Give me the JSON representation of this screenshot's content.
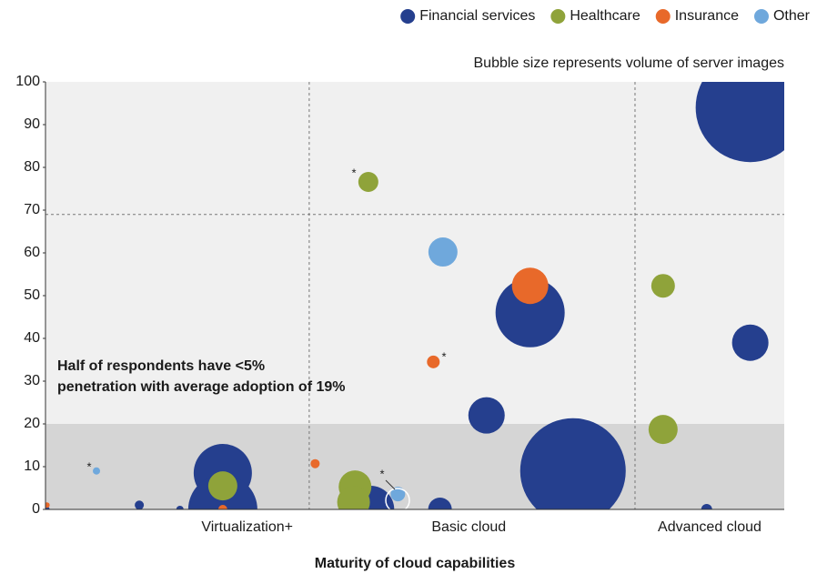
{
  "chart_data": {
    "type": "bubble",
    "subtitle": "Bubble size represents volume of server images",
    "x_label": "Maturity of cloud capabilities",
    "annotation": [
      "Half of respondents have <5%",
      "penetration with average adoption of 19%"
    ],
    "asterisks": [
      "*",
      "*",
      "*",
      "*"
    ],
    "xlim": [
      0,
      100
    ],
    "ylim": [
      0,
      100
    ],
    "xticks": [
      {
        "value": 27.3,
        "label": "Virtualization+"
      },
      {
        "value": 57.3,
        "label": "Basic cloud"
      },
      {
        "value": 89.9,
        "label": "Advanced cloud"
      }
    ],
    "yticks": [
      0,
      10,
      20,
      30,
      40,
      50,
      60,
      70,
      80,
      90,
      100
    ],
    "x_dividers": [
      35.7,
      79.8
    ],
    "y_divider": 69,
    "shaded_below": 20,
    "legend": "top-right",
    "series": [
      {
        "name": "Financial services",
        "color": "#253f8e",
        "x": [
          95.4,
          65.6,
          71.4,
          95.4,
          59.7,
          24,
          24,
          44,
          53.4,
          12.7,
          18.2,
          89.5,
          0.2
        ],
        "values": [
          94,
          46,
          9,
          39,
          22,
          8.5,
          0,
          0,
          0,
          1,
          0,
          0,
          0
        ],
        "sizes": [
          60,
          38,
          58,
          20,
          20,
          32,
          38,
          26,
          13,
          5,
          4,
          6,
          3
        ]
      },
      {
        "name": "Healthcare",
        "color": "#8fa33a",
        "x": [
          43.7,
          83.6,
          83.6,
          24,
          41.9,
          41.7
        ],
        "values": [
          76.6,
          52.3,
          18.7,
          5.5,
          5.3,
          1.7
        ],
        "sizes": [
          11,
          13,
          16,
          16,
          18,
          18
        ]
      },
      {
        "name": "Insurance",
        "color": "#e8692a",
        "x": [
          65.6,
          52.5,
          36.5,
          24,
          0.2
        ],
        "values": [
          52.3,
          34.5,
          10.7,
          0,
          1
        ],
        "sizes": [
          20,
          7,
          5,
          5,
          3
        ]
      },
      {
        "name": "Other",
        "color": "#6fa8dc",
        "x": [
          53.8,
          6.9,
          47.7
        ],
        "values": [
          60.2,
          9,
          3.6
        ],
        "sizes": [
          16,
          4,
          8
        ]
      }
    ]
  }
}
